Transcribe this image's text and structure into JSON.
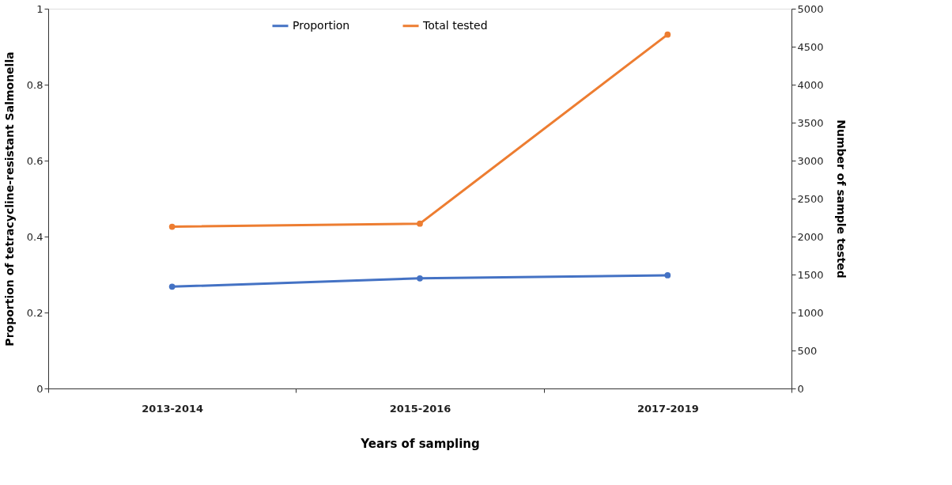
{
  "chart_data": {
    "type": "line",
    "xlabel": "Years of  sampling",
    "ylabel": "Proportion of tetracycline-resistant Salmonella",
    "y2label": "Number of sample tested",
    "categories": [
      "2013-2014",
      "2015-2016",
      "2017-2019"
    ],
    "series": [
      {
        "name": "Proportion",
        "color": "#4472c4",
        "values": [
          0.268,
          0.29,
          0.298
        ]
      },
      {
        "name": "Total tested",
        "color": "#ed7d31",
        "values": [
          2130,
          2170,
          4660
        ],
        "axis": "y2"
      }
    ],
    "ylim": [
      0,
      1
    ],
    "yticks": [
      0,
      0.2,
      0.4,
      0.6,
      0.8,
      1
    ],
    "y2lim": [
      0,
      5000
    ],
    "y2ticks": [
      0,
      500,
      1000,
      1500,
      2000,
      2500,
      3000,
      3500,
      4000,
      4500,
      5000
    ],
    "grid": false,
    "legend": "top",
    "marker": "circle",
    "line_style": "solid"
  }
}
